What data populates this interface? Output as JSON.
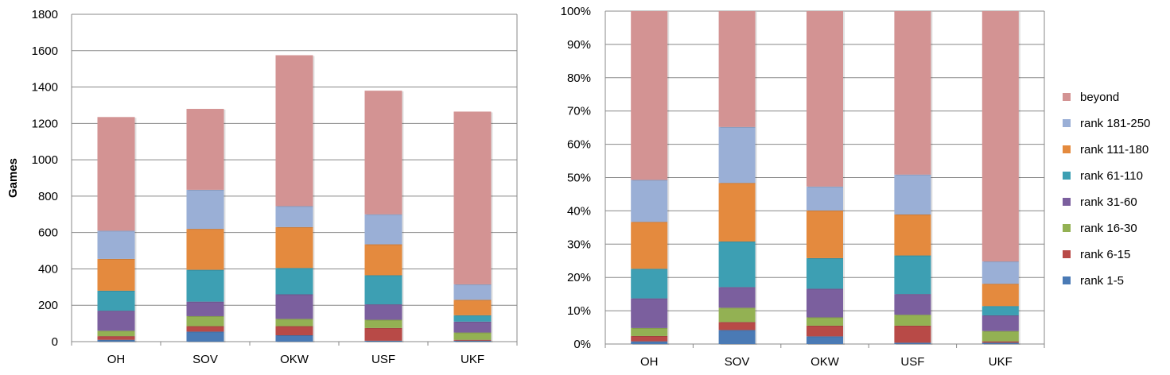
{
  "chart_data": [
    {
      "type": "bar",
      "stacked": true,
      "title": "",
      "xlabel": "",
      "ylabel": "Games",
      "ylim": [
        0,
        1800
      ],
      "yticks": [
        "0",
        "200",
        "400",
        "600",
        "800",
        "1000",
        "1200",
        "1400",
        "1600",
        "1800"
      ],
      "grid": true,
      "categories": [
        "OH",
        "SOV",
        "OKW",
        "USF",
        "UKF"
      ],
      "series": [
        {
          "name": "rank 1-5",
          "values": [
            10,
            55,
            35,
            5,
            5
          ]
        },
        {
          "name": "rank 6-15",
          "values": [
            20,
            30,
            50,
            70,
            5
          ]
        },
        {
          "name": "rank 16-30",
          "values": [
            30,
            55,
            40,
            45,
            40
          ]
        },
        {
          "name": "rank 31-60",
          "values": [
            110,
            80,
            135,
            85,
            60
          ]
        },
        {
          "name": "rank 61-110",
          "values": [
            110,
            175,
            145,
            160,
            35
          ]
        },
        {
          "name": "rank 111-180",
          "values": [
            175,
            225,
            225,
            170,
            85
          ]
        },
        {
          "name": "rank 181-250",
          "values": [
            155,
            215,
            115,
            165,
            85
          ]
        },
        {
          "name": "beyond",
          "values": [
            625,
            445,
            830,
            680,
            950
          ]
        }
      ]
    },
    {
      "type": "bar",
      "stacked": true,
      "percent": true,
      "title": "",
      "xlabel": "",
      "ylabel": "",
      "ylim": [
        0,
        100
      ],
      "yticks": [
        "0%",
        "10%",
        "20%",
        "30%",
        "40%",
        "50%",
        "60%",
        "70%",
        "80%",
        "90%",
        "100%"
      ],
      "grid": true,
      "legend_position": "right",
      "categories": [
        "OH",
        "SOV",
        "OKW",
        "USF",
        "UKF"
      ],
      "series": [
        {
          "name": "rank 1-5",
          "values": [
            0.8,
            4.2,
            2.3,
            0.4,
            0.4
          ]
        },
        {
          "name": "rank 6-15",
          "values": [
            1.6,
            2.4,
            3.2,
            5.1,
            0.4
          ]
        },
        {
          "name": "rank 16-30",
          "values": [
            2.4,
            4.3,
            2.5,
            3.3,
            3.1
          ]
        },
        {
          "name": "rank 31-60",
          "values": [
            8.9,
            6.2,
            8.6,
            6.2,
            4.7
          ]
        },
        {
          "name": "rank 61-110",
          "values": [
            8.9,
            13.7,
            9.2,
            11.6,
            2.8
          ]
        },
        {
          "name": "rank 111-180",
          "values": [
            14.1,
            17.6,
            14.3,
            12.3,
            6.7
          ]
        },
        {
          "name": "rank 181-250",
          "values": [
            12.6,
            16.8,
            7.2,
            12.0,
            6.7
          ]
        },
        {
          "name": "beyond",
          "values": [
            50.7,
            34.8,
            52.7,
            49.1,
            75.2
          ]
        }
      ]
    }
  ],
  "colors": {
    "rank 1-5": "#4a7ab5",
    "rank 6-15": "#b84a47",
    "rank 16-30": "#93b153",
    "rank 31-60": "#7b5f9e",
    "rank 61-110": "#3d9fb3",
    "rank 111-180": "#e48a3e",
    "rank 181-250": "#9aafd6",
    "beyond": "#d39393",
    "grid": "#888888"
  }
}
